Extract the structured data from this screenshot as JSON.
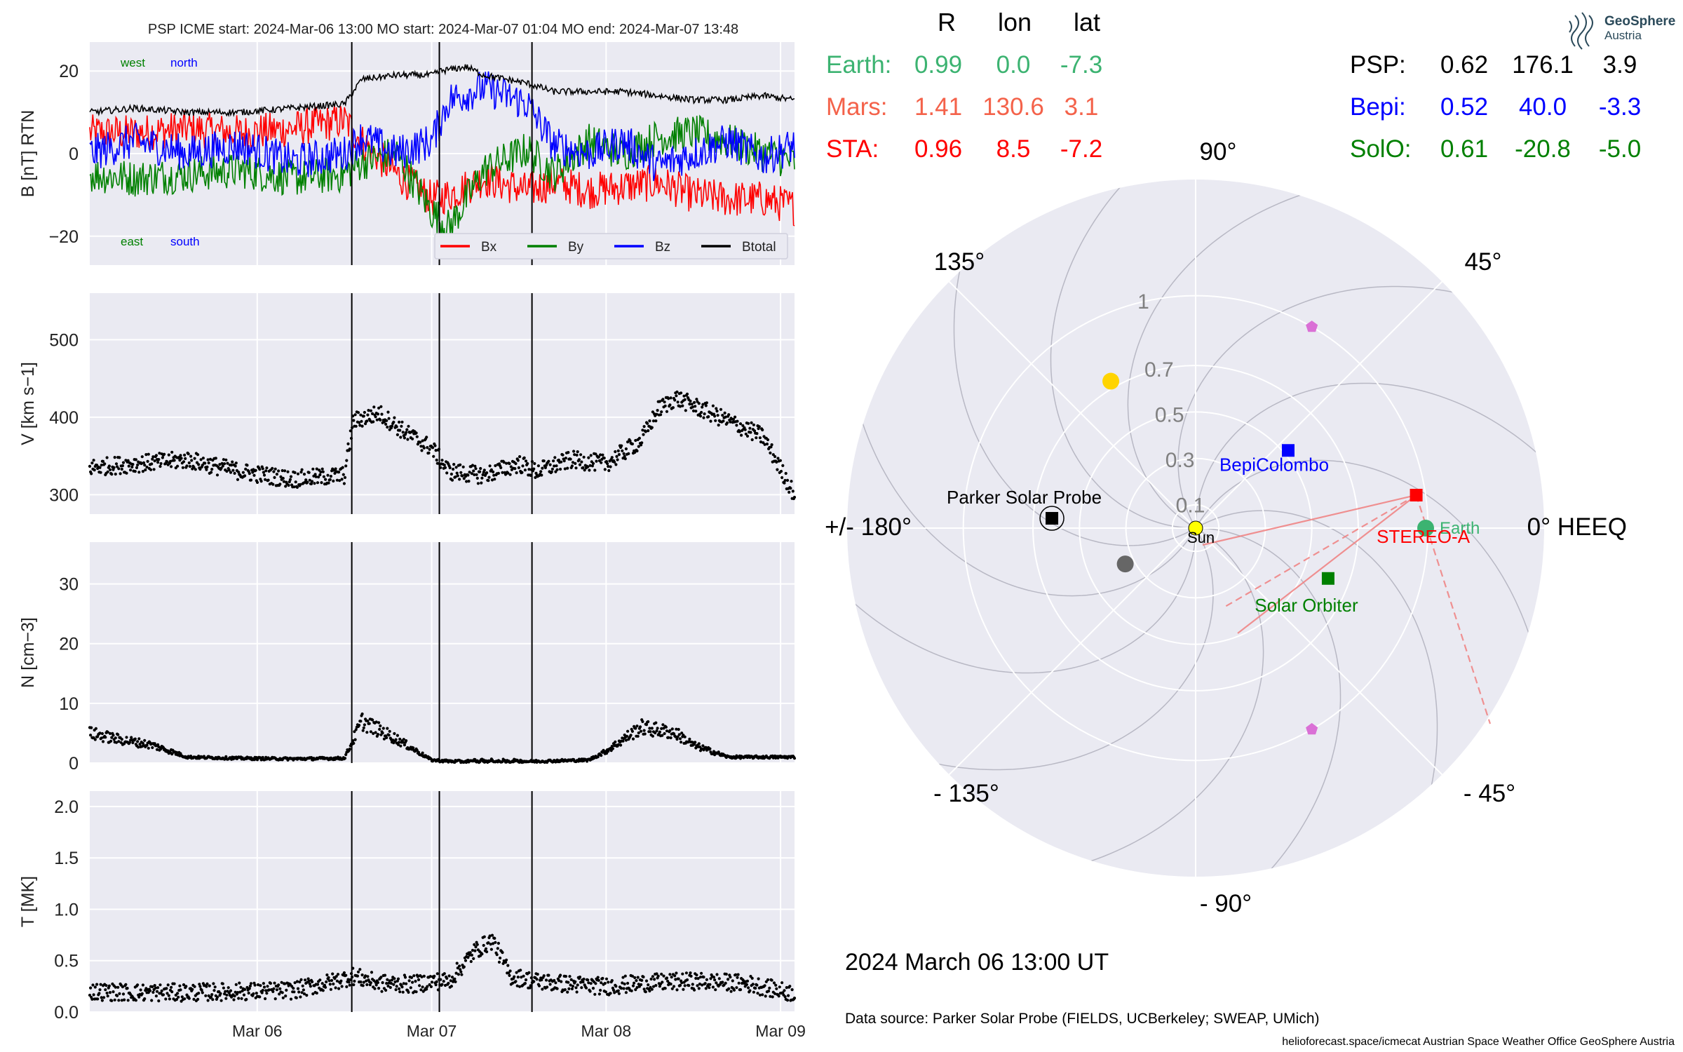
{
  "header": {
    "title": "PSP    ICME start: 2024-Mar-06 13:00   MO start: 2024-Mar-07 01:04   MO end: 2024-Mar-07 13:48"
  },
  "logo": {
    "name": "GeoSphere",
    "sub": "Austria"
  },
  "timestamp": "2024 March 06  13:00 UT",
  "datasource": "Data source: Parker Solar Probe (FIELDS, UCBerkeley; SWEAP, UMich)",
  "credits": "helioforecast.space/icmecat   Austrian Space Weather Office   GeoSphere Austria",
  "colors": {
    "panel_bg": "#eaeaf2",
    "earth": "#3cb371",
    "mars": "#f4624a",
    "sta": "#ff0000",
    "psp": "#000000",
    "bepi": "#0000ff",
    "solo": "#008000",
    "venus": "#ffd400",
    "mercury": "#666666",
    "l5": "#da70d6",
    "sun": "#ffff00"
  },
  "positions_table": {
    "columns": [
      "R",
      "lon",
      "lat"
    ],
    "left": [
      {
        "label": "Earth:",
        "R": "0.99",
        "lon": "0.0",
        "lat": "-7.3",
        "color": "#3cb371"
      },
      {
        "label": "Mars:",
        "R": "1.41",
        "lon": "130.6",
        "lat": "3.1",
        "color": "#f4624a"
      },
      {
        "label": "STA:",
        "R": "0.96",
        "lon": "8.5",
        "lat": "-7.2",
        "color": "#ff0000"
      }
    ],
    "right": [
      {
        "label": "PSP:",
        "R": "0.62",
        "lon": "176.1",
        "lat": "3.9",
        "color": "#000000"
      },
      {
        "label": "Bepi:",
        "R": "0.52",
        "lon": "40.0",
        "lat": "-3.3",
        "color": "#0000ff"
      },
      {
        "label": "SolO:",
        "R": "0.61",
        "lon": "-20.8",
        "lat": "-5.0",
        "color": "#008000"
      }
    ]
  },
  "chart_data": [
    {
      "type": "line",
      "panel": "magnetic field",
      "ylabel": "B [nT] RTN",
      "ylim": [
        -27,
        27
      ],
      "yticks": [
        -20,
        0,
        20
      ],
      "xlim_days": [
        5.04,
        9.08
      ],
      "xticks": [
        {
          "t": 6,
          "label": "Mar 06"
        },
        {
          "t": 7,
          "label": "Mar 07"
        },
        {
          "t": 8,
          "label": "Mar 08"
        },
        {
          "t": 9,
          "label": "Mar 09"
        }
      ],
      "event_lines": [
        6.542,
        7.044,
        7.575
      ],
      "annotations": [
        {
          "text": "west",
          "color": "#008000"
        },
        {
          "text": "north",
          "color": "#0000ff"
        },
        {
          "text": "east",
          "color": "#008000"
        },
        {
          "text": "south",
          "color": "#0000ff"
        }
      ],
      "legend": "lower-right",
      "series": [
        {
          "name": "Bx",
          "color": "#ff0000",
          "x": [
            5.04,
            5.3,
            5.6,
            5.9,
            6.2,
            6.5,
            6.6,
            6.8,
            7.0,
            7.1,
            7.3,
            7.55,
            7.7,
            7.9,
            8.1,
            8.3,
            8.5,
            8.7,
            8.9,
            9.08
          ],
          "y": [
            5,
            5,
            6,
            5,
            6,
            8,
            3,
            -5,
            -11,
            -10,
            -6,
            -9,
            -7,
            -9,
            -8,
            -7,
            -10,
            -11,
            -11,
            -13
          ]
        },
        {
          "name": "By",
          "color": "#008000",
          "x": [
            5.04,
            5.3,
            5.6,
            5.9,
            6.2,
            6.5,
            6.6,
            6.8,
            7.0,
            7.1,
            7.3,
            7.55,
            7.7,
            7.9,
            8.1,
            8.3,
            8.5,
            8.7,
            8.9,
            9.08
          ],
          "y": [
            -5,
            -6,
            -5,
            -4,
            -6,
            -5,
            -2,
            0,
            -14,
            -18,
            -4,
            1,
            -5,
            3,
            0,
            4,
            5,
            3,
            0,
            -2
          ]
        },
        {
          "name": "Bz",
          "color": "#0000ff",
          "x": [
            5.04,
            5.3,
            5.6,
            5.9,
            6.2,
            6.5,
            6.6,
            6.8,
            7.0,
            7.1,
            7.3,
            7.55,
            7.7,
            7.9,
            8.1,
            8.3,
            8.5,
            8.7,
            8.9,
            9.08
          ],
          "y": [
            0,
            3,
            0,
            2,
            -2,
            0,
            4,
            0,
            3,
            13,
            16,
            12,
            2,
            0,
            3,
            -3,
            0,
            3,
            -1,
            2
          ]
        },
        {
          "name": "Btotal",
          "color": "#000000",
          "x": [
            5.04,
            5.3,
            5.6,
            5.9,
            6.2,
            6.5,
            6.6,
            6.8,
            7.0,
            7.05,
            7.2,
            7.3,
            7.55,
            7.7,
            7.9,
            8.1,
            8.3,
            8.5,
            8.7,
            8.9,
            9.08
          ],
          "y": [
            10,
            11,
            10,
            10,
            11,
            12,
            18,
            19,
            19,
            20,
            21,
            19,
            17,
            15,
            15,
            15,
            14,
            13,
            13,
            14,
            13
          ]
        }
      ]
    },
    {
      "type": "scatter",
      "panel": "speed",
      "ylabel": "V [km s−1]",
      "ylim": [
        275,
        560
      ],
      "yticks": [
        300,
        400,
        500
      ],
      "series": [
        {
          "name": "V",
          "color": "#000000",
          "x": [
            5.04,
            5.3,
            5.6,
            5.9,
            6.2,
            6.5,
            6.55,
            6.7,
            6.85,
            7.0,
            7.1,
            7.3,
            7.5,
            7.6,
            7.8,
            8.0,
            8.2,
            8.3,
            8.4,
            8.5,
            8.7,
            8.9,
            9.08
          ],
          "y": [
            335,
            340,
            345,
            330,
            320,
            325,
            395,
            405,
            380,
            360,
            330,
            325,
            340,
            330,
            345,
            340,
            370,
            410,
            425,
            415,
            395,
            375,
            300
          ]
        }
      ]
    },
    {
      "type": "scatter",
      "panel": "density",
      "ylabel": "N [cm−3]",
      "ylim": [
        0,
        37
      ],
      "yticks": [
        0,
        10,
        20,
        30
      ],
      "series": [
        {
          "name": "N",
          "color": "#000000",
          "x": [
            5.04,
            5.2,
            5.4,
            5.6,
            5.9,
            6.2,
            6.5,
            6.6,
            6.8,
            7.0,
            7.1,
            7.3,
            7.6,
            7.9,
            8.0,
            8.2,
            8.4,
            8.5,
            8.7,
            8.9,
            9.08
          ],
          "y": [
            5,
            4,
            3,
            1,
            0.8,
            0.7,
            0.8,
            7,
            4,
            0.5,
            0.3,
            0.2,
            0.3,
            0.5,
            2,
            6,
            5,
            3,
            1,
            1,
            1
          ]
        }
      ]
    },
    {
      "type": "scatter",
      "panel": "temperature",
      "ylabel": "T [MK]",
      "ylim": [
        0,
        2.15
      ],
      "yticks": [
        0,
        0.5,
        1.0,
        1.5,
        2.0
      ],
      "yticklabels": [
        "0.0",
        "0.5",
        "1.0",
        "1.5",
        "2.0"
      ],
      "series": [
        {
          "name": "T",
          "color": "#000000",
          "x": [
            5.04,
            5.3,
            5.6,
            5.9,
            6.2,
            6.45,
            6.55,
            6.7,
            6.9,
            7.0,
            7.1,
            7.25,
            7.35,
            7.45,
            7.6,
            7.8,
            8.0,
            8.2,
            8.5,
            8.8,
            9.08
          ],
          "y": [
            0.2,
            0.19,
            0.19,
            0.2,
            0.21,
            0.3,
            0.35,
            0.28,
            0.27,
            0.3,
            0.3,
            0.6,
            0.7,
            0.35,
            0.3,
            0.27,
            0.25,
            0.28,
            0.3,
            0.28,
            0.18
          ]
        }
      ]
    },
    {
      "type": "scatter",
      "panel": "polar orbit plot",
      "coords": "polar, HEEQ longitude (deg) and radius (AU)",
      "rlim": [
        0,
        1.5
      ],
      "rticks": [
        0.1,
        0.3,
        0.5,
        0.7,
        1.0
      ],
      "angle_labels": [
        {
          "angle": 0,
          "text": "0° HEEQ"
        },
        {
          "angle": 45,
          "text": "45°"
        },
        {
          "angle": 90,
          "text": "90°"
        },
        {
          "angle": 135,
          "text": "135°"
        },
        {
          "angle": 180,
          "text": "+/- 180°"
        },
        {
          "angle": -135,
          "text": "- 135°"
        },
        {
          "angle": -90,
          "text": "- 90°"
        },
        {
          "angle": -45,
          "text": "- 45°"
        }
      ],
      "objects": [
        {
          "name": "Sun",
          "r": 0,
          "lon": 0,
          "color": "#ffff00",
          "marker": "circle"
        },
        {
          "name": "Earth",
          "r": 0.99,
          "lon": 0.0,
          "color": "#3cb371",
          "marker": "circle"
        },
        {
          "name": "STEREO-A",
          "r": 0.96,
          "lon": 8.5,
          "color": "#ff0000",
          "marker": "square"
        },
        {
          "name": "Parker Solar Probe",
          "r": 0.62,
          "lon": 176.1,
          "color": "#000000",
          "marker": "square"
        },
        {
          "name": "BepiColombo",
          "r": 0.52,
          "lon": 40.0,
          "color": "#0000ff",
          "marker": "square"
        },
        {
          "name": "Solar Orbiter",
          "r": 0.61,
          "lon": -20.8,
          "color": "#008000",
          "marker": "square"
        },
        {
          "name": "",
          "r": 0.73,
          "lon": 120,
          "color": "#ffd400",
          "marker": "circle"
        },
        {
          "name": "",
          "r": 0.34,
          "lon": -153,
          "color": "#666666",
          "marker": "circle"
        },
        {
          "name": "",
          "r": 1.0,
          "lon": 60,
          "color": "#da70d6",
          "marker": "pentagon"
        },
        {
          "name": "",
          "r": 1.0,
          "lon": -60,
          "color": "#da70d6",
          "marker": "pentagon"
        }
      ]
    }
  ]
}
